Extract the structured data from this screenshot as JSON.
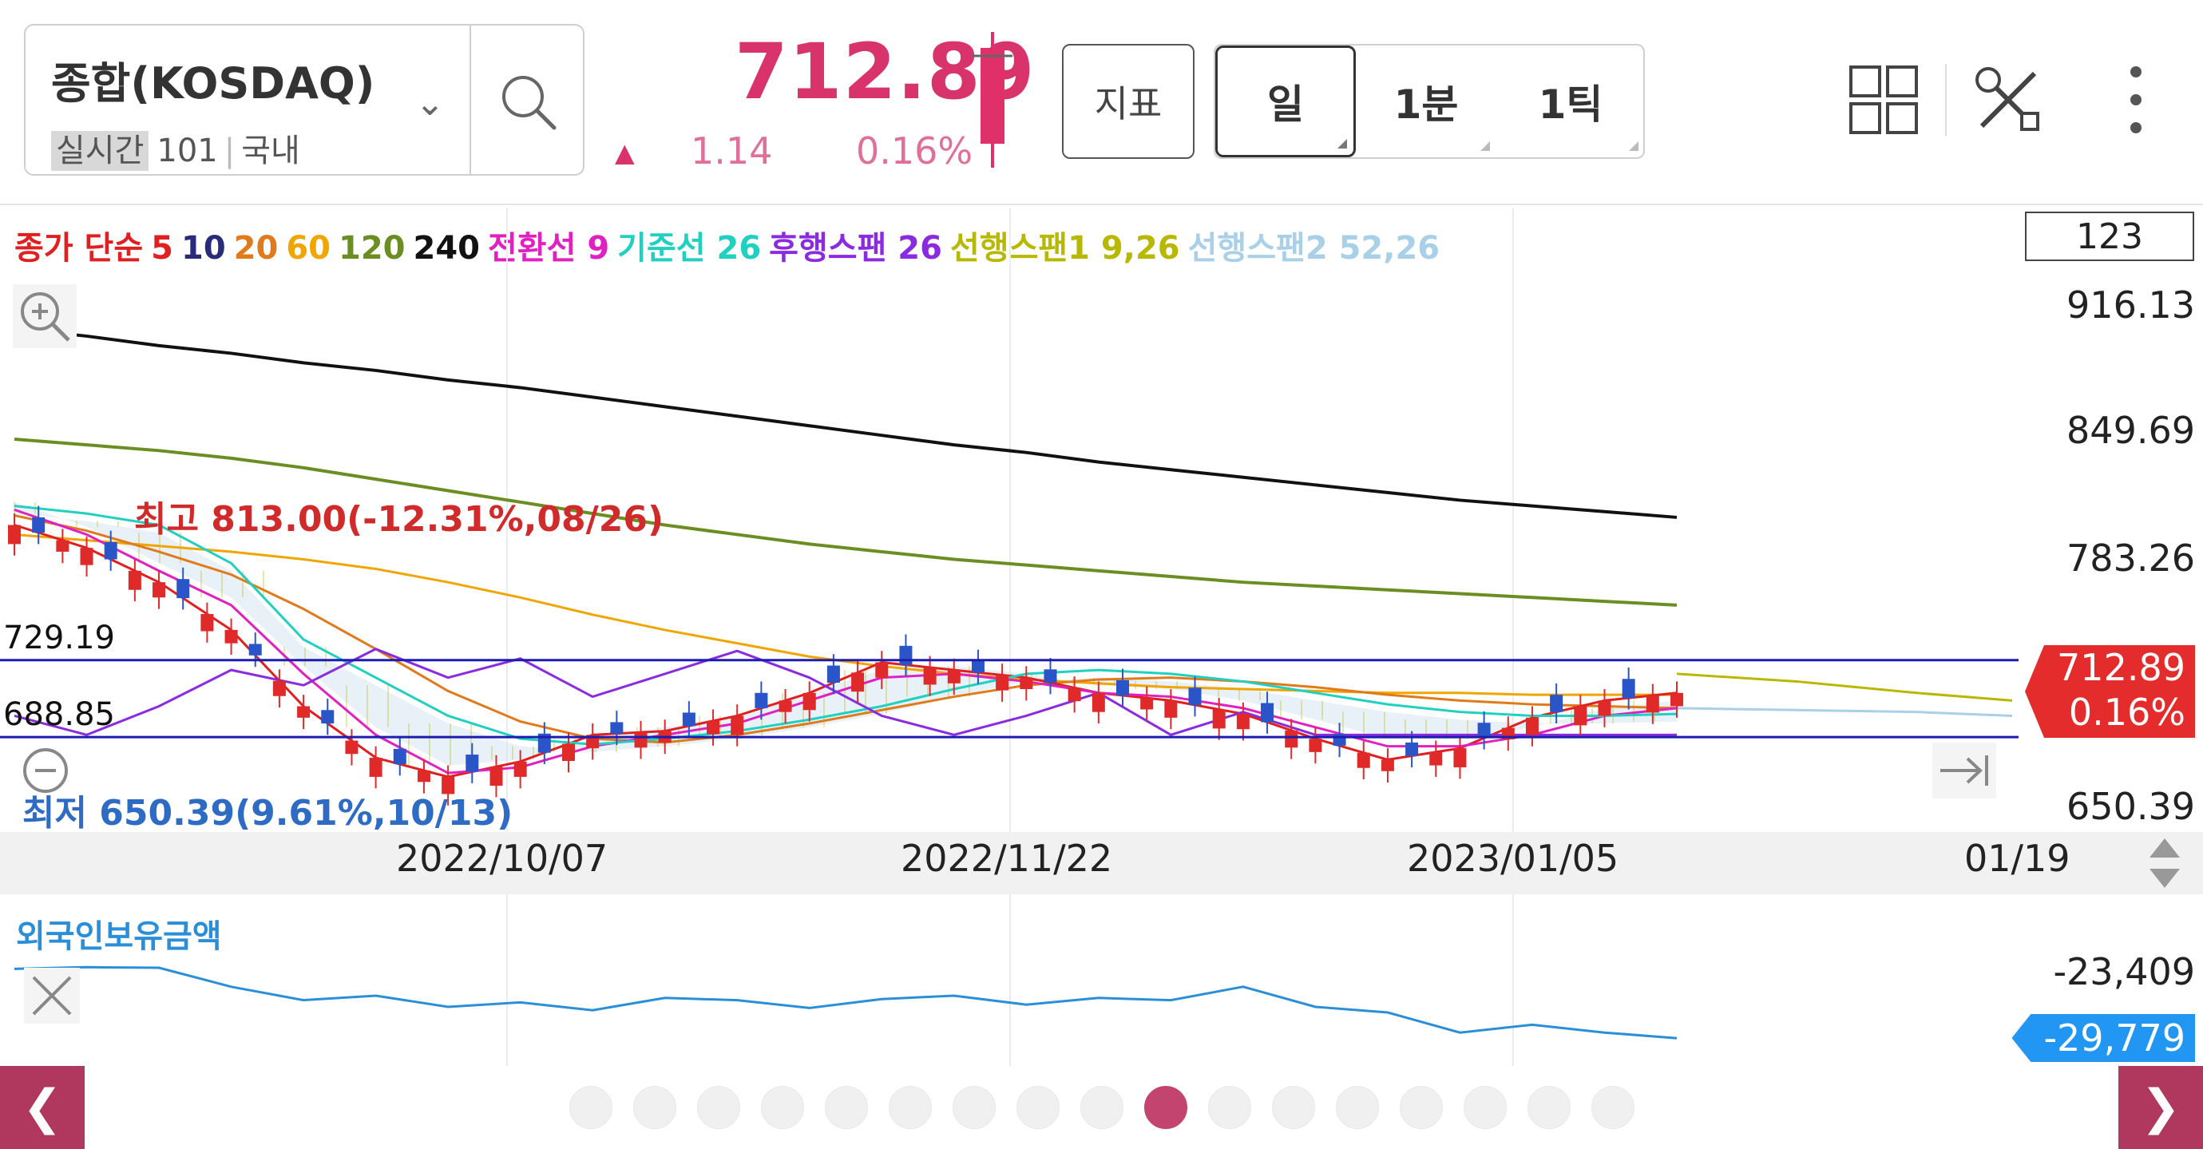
{
  "header": {
    "symbol_name": "종합(KOSDAQ)",
    "realtime_tag": "실시간",
    "code": "101",
    "market": "국내",
    "price": "712.89",
    "change": "1.14",
    "change_pct": "0.16%",
    "indicator_button": "지표",
    "periods": [
      "일",
      "1분",
      "1틱"
    ],
    "active_period": "일",
    "accent_color": "#d9336b"
  },
  "legend": [
    {
      "text": "종가 단순",
      "color": "#e02020"
    },
    {
      "text": "5",
      "color": "#e02020"
    },
    {
      "text": "10",
      "color": "#2a2a7a"
    },
    {
      "text": "20",
      "color": "#e07a1a"
    },
    {
      "text": "60",
      "color": "#f0a500"
    },
    {
      "text": "120",
      "color": "#6b8e23"
    },
    {
      "text": "240",
      "color": "#111111"
    },
    {
      "text": "전환선 9",
      "color": "#e020c0"
    },
    {
      "text": "기준선 26",
      "color": "#20d0c0"
    },
    {
      "text": "후행스팬 26",
      "color": "#8a2be2"
    },
    {
      "text": "선행스팬1 9,26",
      "color": "#b8b800"
    },
    {
      "text": "선행스팬2 52,26",
      "color": "#a8d0e8"
    }
  ],
  "axis_box": "123",
  "chart_data": {
    "type": "line",
    "y_ticks": [
      "916.13",
      "849.69",
      "783.26",
      "650.39"
    ],
    "ylim": [
      650.39,
      916.13
    ],
    "x_ticks": [
      "2022/10/07",
      "2022/11/22",
      "2023/01/05",
      "01/19"
    ],
    "current_price_flag": {
      "value": "712.89",
      "pct": "0.16%"
    },
    "horizontal_lines": [
      {
        "label": "729.19",
        "value": 729.19
      },
      {
        "label": "688.85",
        "value": 688.85
      }
    ],
    "annotations": {
      "high": "최고 813.00(-12.31%,08/26)",
      "low": "최저 650.39(9.61%,10/13)"
    },
    "series": [
      {
        "name": "240",
        "color": "#111111",
        "values": [
          903,
          899,
          894,
          890,
          885,
          881,
          876,
          872,
          867,
          862,
          857,
          852,
          847,
          842,
          838,
          833,
          829,
          825,
          821,
          817,
          813,
          810,
          807,
          804
        ]
      },
      {
        "name": "120",
        "color": "#6b8e23",
        "values": [
          845,
          842,
          839,
          835,
          830,
          824,
          818,
          812,
          806,
          800,
          795,
          790,
          786,
          782,
          779,
          776,
          773,
          770,
          768,
          766,
          764,
          762,
          760,
          758
        ]
      },
      {
        "name": "60",
        "color": "#f0a500",
        "values": [
          795,
          792,
          789,
          786,
          782,
          777,
          770,
          762,
          753,
          745,
          738,
          731,
          726,
          722,
          719,
          717,
          715,
          714,
          713,
          712,
          712,
          711,
          711,
          711
        ]
      },
      {
        "name": "20",
        "color": "#e07a1a",
        "values": [
          805,
          797,
          786,
          774,
          756,
          735,
          713,
          697,
          688,
          686,
          690,
          696,
          703,
          710,
          716,
          719,
          720,
          718,
          715,
          711,
          708,
          706,
          705,
          704
        ]
      },
      {
        "name": "5",
        "color": "#e02020",
        "values": [
          800,
          788,
          770,
          745,
          705,
          678,
          668,
          676,
          690,
          692,
          700,
          712,
          728,
          724,
          720,
          712,
          708,
          701,
          688,
          677,
          683,
          699,
          708,
          712
        ]
      },
      {
        "name": "전환선 9",
        "color": "#e020c0",
        "values": [
          808,
          795,
          776,
          758,
          722,
          690,
          670,
          673,
          684,
          690,
          696,
          708,
          720,
          722,
          718,
          712,
          710,
          704,
          694,
          684,
          684,
          690,
          700,
          704
        ]
      },
      {
        "name": "기준선 26",
        "color": "#20d0c0",
        "values": [
          810,
          806,
          800,
          780,
          740,
          720,
          700,
          688,
          685,
          688,
          692,
          698,
          705,
          714,
          722,
          724,
          722,
          718,
          712,
          706,
          702,
          700,
          700,
          701
        ]
      },
      {
        "name": "후행스팬 26",
        "color": "#8a2be2",
        "values": [
          700,
          690,
          705,
          724,
          716,
          735,
          720,
          730,
          710,
          722,
          734,
          720,
          700,
          690,
          700,
          712,
          690,
          702,
          690,
          690,
          690,
          690,
          690,
          690
        ]
      },
      {
        "name": "외국인보유금액",
        "color": "#2a8fd8",
        "values": [
          -23600,
          -23450,
          -23500,
          -25200,
          -26400,
          -26000,
          -27000,
          -26600,
          -27300,
          -26200,
          -26400,
          -27100,
          -26300,
          -26000,
          -26800,
          -26200,
          -26400,
          -25200,
          -27000,
          -27500,
          -29300,
          -28600,
          -29300,
          -29800
        ]
      }
    ],
    "panel2": {
      "title": "외국인보유금액",
      "y_ticks": [
        "-23,409"
      ],
      "flag": "-29,779"
    }
  },
  "pager": {
    "count": 17,
    "active_index": 9
  }
}
